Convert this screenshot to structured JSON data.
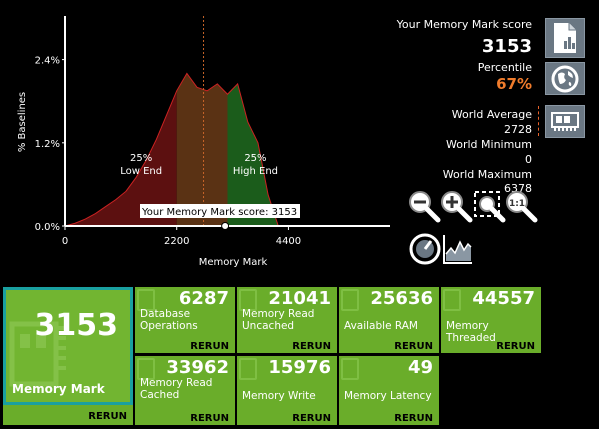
{
  "chart_data": {
    "type": "area",
    "xlabel": "Memory Mark",
    "ylabel": "% Baselines",
    "xlim": [
      0,
      6400
    ],
    "ylim": [
      0,
      3.0
    ],
    "x_ticks": [
      {
        "v": 0,
        "label": "0"
      },
      {
        "v": 2200,
        "label": "2200"
      },
      {
        "v": 4400,
        "label": "4400"
      }
    ],
    "y_ticks": [
      {
        "v": 0,
        "label": "0.0%"
      },
      {
        "v": 1.2,
        "label": "1.2%"
      },
      {
        "v": 2.4,
        "label": "2.4%"
      }
    ],
    "distribution": {
      "x": [
        0,
        200,
        400,
        600,
        800,
        1000,
        1200,
        1400,
        1600,
        1800,
        2000,
        2200,
        2400,
        2600,
        2800,
        3000,
        3200,
        3400,
        3600,
        3800,
        4000,
        4200
      ],
      "y": [
        0.0,
        0.04,
        0.1,
        0.18,
        0.28,
        0.38,
        0.5,
        0.7,
        0.95,
        1.25,
        1.6,
        1.95,
        2.2,
        2.0,
        1.95,
        2.05,
        1.9,
        2.05,
        1.5,
        1.2,
        0.45,
        0.0
      ]
    },
    "regions": [
      {
        "name": "Low End",
        "x_from": 0,
        "x_to": 2200,
        "color": "#5c1010"
      },
      {
        "name": "middle",
        "x_from": 2200,
        "x_to": 3200,
        "color": "#5a3214"
      },
      {
        "name": "High End",
        "x_from": 3200,
        "x_to": 4200,
        "color": "#1b5c1b"
      }
    ],
    "annotations": [
      {
        "pct": "25%",
        "label": "Low End",
        "x": 1500,
        "y": 0.75
      },
      {
        "pct": "25%",
        "label": "High End",
        "x": 3750,
        "y": 0.75
      }
    ],
    "world_average_x": 2728,
    "marker": {
      "x": 3153,
      "label": "Your Memory Mark score: 3153"
    }
  },
  "stats": {
    "score_label": "Your Memory Mark score",
    "score_value": "3153",
    "percentile_label": "Percentile",
    "percentile_value": "67%",
    "world_average_label": "World Average",
    "world_average_value": "2728",
    "world_minimum_label": "World Minimum",
    "world_minimum_value": "0",
    "world_maximum_label": "World Maximum",
    "world_maximum_value": "6378"
  },
  "icons": {
    "report": "document-report-icon",
    "world": "globe-icon",
    "hardware": "memory-card-icon",
    "zoom_out": "zoom-out-icon",
    "zoom_in": "zoom-in-icon",
    "zoom_fit": "zoom-fit-icon",
    "zoom_reset": "zoom-reset-icon",
    "gauge": "gauge-icon",
    "chart": "chart-icon"
  },
  "main_tile": {
    "value": "3153",
    "name": "Memory Mark",
    "rerun": "RERUN"
  },
  "tiles": [
    {
      "value": "6287",
      "name": "Database Operations",
      "rerun": "RERUN"
    },
    {
      "value": "21041",
      "name": "Memory Read Uncached",
      "rerun": "RERUN"
    },
    {
      "value": "25636",
      "name": "Available RAM",
      "rerun": "RERUN"
    },
    {
      "value": "44557",
      "name": "Memory Threaded",
      "rerun": "RERUN"
    },
    {
      "value": "33962",
      "name": "Memory Read Cached",
      "rerun": "RERUN"
    },
    {
      "value": "15976",
      "name": "Memory Write",
      "rerun": "RERUN"
    },
    {
      "value": "49",
      "name": "Memory Latency",
      "rerun": "RERUN"
    }
  ],
  "colors": {
    "tile": "#6aad2a",
    "accent": "#f07c2c",
    "button": "#6a7783"
  }
}
